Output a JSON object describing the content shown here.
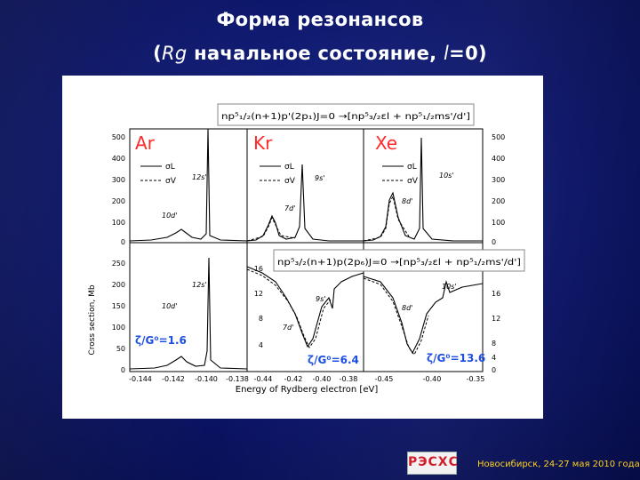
{
  "slide": {
    "title_line1": "Форма резонансов",
    "title_line2_open": "(",
    "title_line2_italic": "Rg",
    "title_line2_rest": " начальное состояние, ",
    "title_line2_l": "l",
    "title_line2_end": "=0)"
  },
  "figure": {
    "caption_top": "np⁵₁/₂(n+1)p'(2p₁)J=0 →[np⁵₃/₂εl + np⁵₁/₂ms'/d']",
    "caption_mid": "np⁵₃/₂(n+1)p(2p₆)J=0 →[np⁵₃/₂εl + np⁵₁/₂ms'/d']",
    "panels": {
      "ar": "Ar",
      "kr": "Kr",
      "xe": "Xe"
    },
    "legend": {
      "sigma_l": "σL",
      "sigma_v": "σV"
    },
    "labels": {
      "ar_12s": "12s'",
      "ar_10d": "10d'",
      "kr_9s": "9s'",
      "kr_7d": "7d'",
      "xe_10s": "10s'",
      "xe_8d": "8d'",
      "ar_12s_b": "12s'",
      "ar_10d_b": "10d'",
      "kr_9s_b": "9s'",
      "kr_7d_b": "7d'",
      "xe_10s_b": "10s'",
      "xe_8d_b": "8d'"
    },
    "zeta": {
      "ar": "ζ/G⁰=1.6",
      "kr": "ζ/G⁰=6.4",
      "xe": "ζ/G⁰=13.6"
    },
    "yaxis_label": "Cross section, Mb",
    "xaxis_label": "Energy of Rydberg electron [eV]",
    "left_ticks_top": [
      "500",
      "400",
      "300",
      "200",
      "100",
      "0"
    ],
    "left_ticks_bottom": [
      "250",
      "200",
      "150",
      "100",
      "50",
      "0"
    ],
    "right_ticks_top": [
      "500",
      "400",
      "300",
      "200",
      "100",
      "0"
    ],
    "kr_ticks_bottom": [
      "16",
      "12",
      "8",
      "4"
    ],
    "xe_ticks_bottom": [
      "16",
      "12",
      "8",
      "4",
      "0"
    ],
    "ar_xticks": [
      "-0.144",
      "-0.142",
      "-0.140",
      "-0.138"
    ],
    "kr_xticks": [
      "-0.44",
      "-0.42",
      "-0.40",
      "-0.38"
    ],
    "xe_xticks": [
      "-0.45",
      "-0.40",
      "-0.35"
    ]
  },
  "footer": {
    "logo_text": "РЭСХС",
    "conference_text": "Новосибирск, 24-27 мая 2010 года"
  },
  "colors": {
    "background": "#0b1466",
    "title": "#ffffff",
    "footer_text": "#ffd21a",
    "panel_label": "#ff2a2a",
    "zeta": "#1f4fe0",
    "caption_accent": "#e0109a"
  }
}
